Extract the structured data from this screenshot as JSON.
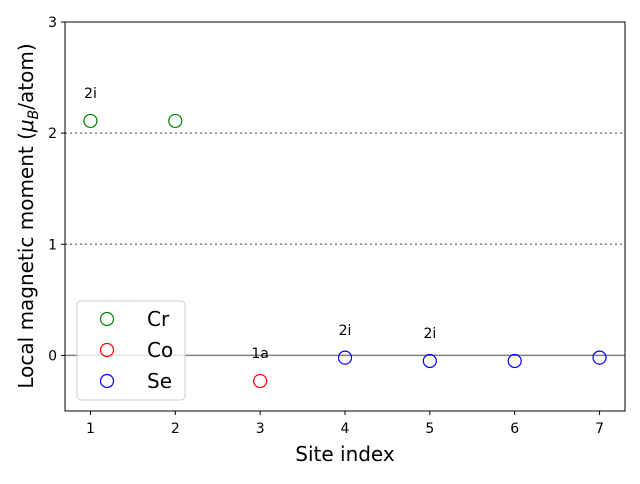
{
  "chart_data": {
    "type": "scatter",
    "x_label": "Site index",
    "y_label": [
      "Local magnetic moment (",
      "μ",
      "B",
      "/atom)"
    ],
    "xlim": [
      0.7,
      7.3
    ],
    "xticks": [
      1,
      2,
      3,
      4,
      5,
      6,
      7
    ],
    "ylim": [
      -0.5,
      3
    ],
    "yticks": [
      0,
      1,
      2,
      3
    ],
    "grid": false,
    "legend": "lower left",
    "hlines": [
      {
        "y": 0,
        "style": "solid",
        "color": "#808080"
      },
      {
        "y": 1,
        "style": "dotted",
        "color": "#808080"
      },
      {
        "y": 2,
        "style": "dotted",
        "color": "#808080"
      }
    ],
    "series": [
      {
        "name": "Cr",
        "color": "#008000",
        "x": [
          1,
          2
        ],
        "values": [
          2.11,
          2.11
        ]
      },
      {
        "name": "Co",
        "color": "#ff0000",
        "x": [
          3
        ],
        "values": [
          -0.23
        ]
      },
      {
        "name": "Se",
        "color": "#0000ff",
        "x": [
          4,
          5,
          6,
          7
        ],
        "values": [
          -0.02,
          -0.05,
          -0.05,
          -0.02
        ]
      }
    ],
    "annotations": [
      {
        "text": "2i",
        "x": 1,
        "y": 2.36
      },
      {
        "text": "1a",
        "x": 3,
        "y": 0.02
      },
      {
        "text": "2i",
        "x": 4,
        "y": 0.23
      },
      {
        "text": "2i",
        "x": 5,
        "y": 0.2
      }
    ]
  }
}
